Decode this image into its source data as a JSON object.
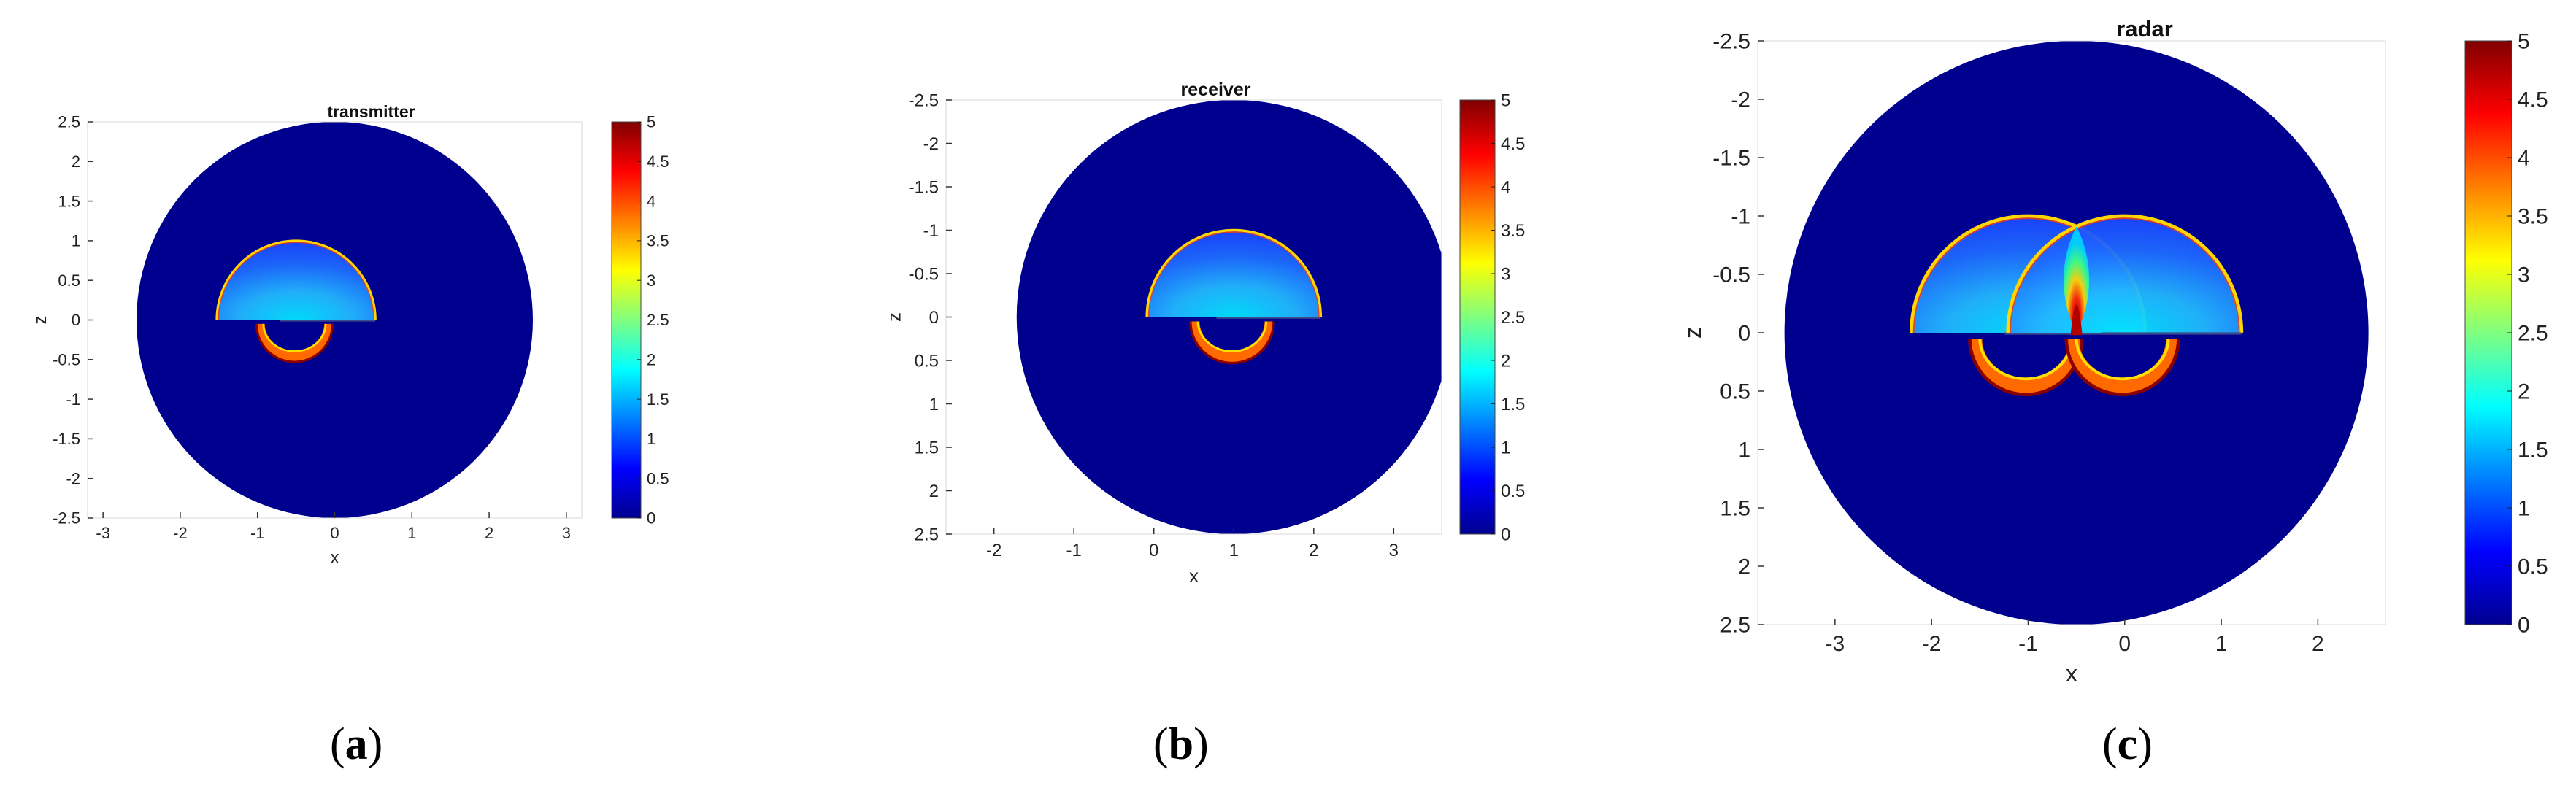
{
  "figure": {
    "captions": [
      {
        "open": "(",
        "letter": "a",
        "close": ")"
      },
      {
        "open": "(",
        "letter": "b",
        "close": ")"
      },
      {
        "open": "(",
        "letter": "c",
        "close": ")"
      }
    ]
  },
  "chart_data": [
    {
      "type": "heatmap",
      "title": "transmitter",
      "xlabel": "x",
      "ylabel": "z",
      "xlim": [
        -3.2,
        3.2
      ],
      "ylim": [
        -2.5,
        2.5
      ],
      "y_direction": "up",
      "x_ticks": [
        -3,
        -2,
        -1,
        0,
        1,
        2,
        3
      ],
      "x_tick_labels": [
        "-3",
        "-2",
        "-1",
        "0",
        "1",
        "2",
        "3"
      ],
      "y_ticks": [
        2.5,
        2,
        1.5,
        1,
        0.5,
        0,
        -0.5,
        -1,
        -1.5,
        -2,
        -2.5
      ],
      "y_tick_labels": [
        "2.5",
        "2",
        "1.5",
        "1",
        "0.5",
        "0",
        "-0.5",
        "-1",
        "-1.5",
        "-2",
        "-2.5"
      ],
      "domain_circle": {
        "center": [
          0,
          0
        ],
        "radius": 2.5
      },
      "sources": [
        {
          "center": [
            -0.5,
            0
          ],
          "radius": 1
        }
      ],
      "colorbar": {
        "range": [
          0,
          5
        ],
        "ticks": [
          0,
          0.5,
          1,
          1.5,
          2,
          2.5,
          3,
          3.5,
          4,
          4.5,
          5
        ],
        "tick_labels": [
          "0",
          "0.5",
          "1",
          "1.5",
          "2",
          "2.5",
          "3",
          "3.5",
          "4",
          "4.5",
          "5"
        ],
        "colormap": "jet"
      },
      "colors": {
        "background_value": "#00008f"
      }
    },
    {
      "type": "heatmap",
      "title": "receiver",
      "xlabel": "x",
      "ylabel": "z",
      "xlim": [
        -2.6,
        3.6
      ],
      "ylim": [
        -2.5,
        2.5
      ],
      "y_direction": "down",
      "x_ticks": [
        -2,
        -1,
        0,
        1,
        2,
        3
      ],
      "x_tick_labels": [
        "-2",
        "-1",
        "0",
        "1",
        "2",
        "3"
      ],
      "y_ticks": [
        -2.5,
        -2,
        -1.5,
        -1,
        -0.5,
        0,
        0.5,
        1,
        1.5,
        2,
        2.5
      ],
      "y_tick_labels": [
        "-2.5",
        "-2",
        "-1.5",
        "-1",
        "-0.5",
        "0",
        "0.5",
        "1",
        "1.5",
        "2",
        "2.5"
      ],
      "domain_circle": {
        "center": [
          1,
          0
        ],
        "radius": 2.5
      },
      "sources": [
        {
          "center": [
            1,
            0
          ],
          "radius": 1
        }
      ],
      "colorbar": {
        "range": [
          0,
          5
        ],
        "ticks": [
          0,
          0.5,
          1,
          1.5,
          2,
          2.5,
          3,
          3.5,
          4,
          4.5,
          5
        ],
        "tick_labels": [
          "0",
          "0.5",
          "1",
          "1.5",
          "2",
          "2.5",
          "3",
          "3.5",
          "4",
          "4.5",
          "5"
        ],
        "colormap": "jet"
      },
      "colors": {
        "background_value": "#00008f"
      }
    },
    {
      "type": "heatmap",
      "title": "radar",
      "xlabel": "x",
      "ylabel": "z",
      "xlim": [
        -3.8,
        2.7
      ],
      "ylim": [
        -2.5,
        2.5
      ],
      "y_direction": "down",
      "x_ticks": [
        -3,
        -2,
        -1,
        0,
        1,
        2
      ],
      "x_tick_labels": [
        "-3",
        "-2",
        "-1",
        "0",
        "1",
        "2"
      ],
      "y_ticks": [
        -2.5,
        -2,
        -1.5,
        -1,
        -0.5,
        0,
        0.5,
        1,
        1.5,
        2,
        2.5
      ],
      "y_tick_labels": [
        "-2.5",
        "-2",
        "-1.5",
        "-1",
        "-0.5",
        "0",
        "0.5",
        "1",
        "1.5",
        "2",
        "2.5"
      ],
      "domain_circle": {
        "center": [
          -0.5,
          0
        ],
        "radius": 2.5
      },
      "sources": [
        {
          "center": [
            -1,
            0
          ],
          "radius": 1
        },
        {
          "center": [
            0,
            0
          ],
          "radius": 1
        }
      ],
      "colorbar": {
        "range": [
          0,
          5
        ],
        "ticks": [
          0,
          0.5,
          1,
          1.5,
          2,
          2.5,
          3,
          3.5,
          4,
          4.5,
          5
        ],
        "tick_labels": [
          "0",
          "0.5",
          "1",
          "1.5",
          "2",
          "2.5",
          "3",
          "3.5",
          "4",
          "4.5",
          "5"
        ],
        "colormap": "jet"
      },
      "colors": {
        "background_value": "#00008f"
      }
    }
  ]
}
